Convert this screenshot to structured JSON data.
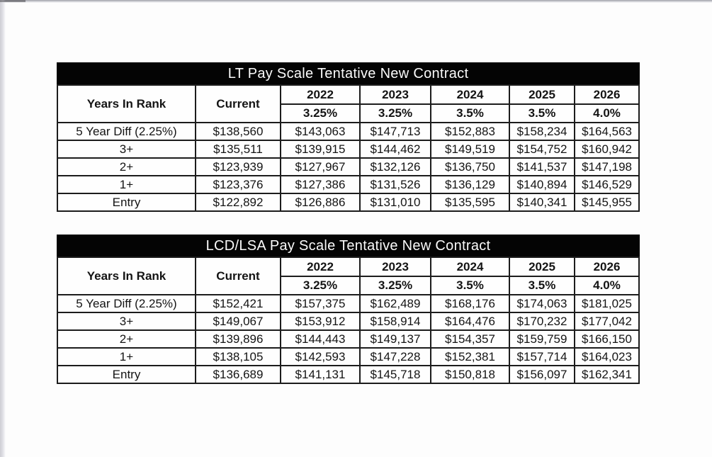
{
  "document": {
    "kind": "scanned pay scale sheet",
    "line_color": "#1c1c1c",
    "title_bar_color": "#040404",
    "title_text_color": "#fafafa"
  },
  "tables": [
    {
      "id": "table-lt",
      "title": "LT Pay Scale Tentative New Contract",
      "header": {
        "years_in_rank": "Years In Rank",
        "current": "Current",
        "years": [
          "2022",
          "2023",
          "2024",
          "2025",
          "2026"
        ],
        "raises": [
          "3.25%",
          "3.25%",
          "3.5%",
          "3.5%",
          "4.0%"
        ]
      },
      "rows": [
        {
          "rank": "5 Year Diff (2.25%)",
          "values": [
            "$138,560",
            "$143,063",
            "$147,713",
            "$152,883",
            "$158,234",
            "$164,563"
          ]
        },
        {
          "rank": "3+",
          "values": [
            "$135,511",
            "$139,915",
            "$144,462",
            "$149,519",
            "$154,752",
            "$160,942"
          ]
        },
        {
          "rank": "2+",
          "values": [
            "$123,939",
            "$127,967",
            "$132,126",
            "$136,750",
            "$141,537",
            "$147,198"
          ]
        },
        {
          "rank": "1+",
          "values": [
            "$123,376",
            "$127,386",
            "$131,526",
            "$136,129",
            "$140,894",
            "$146,529"
          ]
        },
        {
          "rank": "Entry",
          "values": [
            "$122,892",
            "$126,886",
            "$131,010",
            "$135,595",
            "$140,341",
            "$145,955"
          ]
        }
      ]
    },
    {
      "id": "table-lcdlsa",
      "title": "LCD/LSA Pay Scale Tentative New Contract",
      "header": {
        "years_in_rank": "Years In Rank",
        "current": "Current",
        "years": [
          "2022",
          "2023",
          "2024",
          "2025",
          "2026"
        ],
        "raises": [
          "3.25%",
          "3.25%",
          "3.5%",
          "3.5%",
          "4.0%"
        ]
      },
      "rows": [
        {
          "rank": "5 Year Diff (2.25%)",
          "values": [
            "$152,421",
            "$157,375",
            "$162,489",
            "$168,176",
            "$174,063",
            "$181,025"
          ]
        },
        {
          "rank": "3+",
          "values": [
            "$149,067",
            "$153,912",
            "$158,914",
            "$164,476",
            "$170,232",
            "$177,042"
          ]
        },
        {
          "rank": "2+",
          "values": [
            "$139,896",
            "$144,443",
            "$149,137",
            "$154,357",
            "$159,759",
            "$166,150"
          ]
        },
        {
          "rank": "1+",
          "values": [
            "$138,105",
            "$142,593",
            "$147,228",
            "$152,381",
            "$157,714",
            "$164,023"
          ]
        },
        {
          "rank": "Entry",
          "values": [
            "$136,689",
            "$141,131",
            "$145,718",
            "$150,818",
            "$156,097",
            "$162,341"
          ]
        }
      ]
    }
  ]
}
